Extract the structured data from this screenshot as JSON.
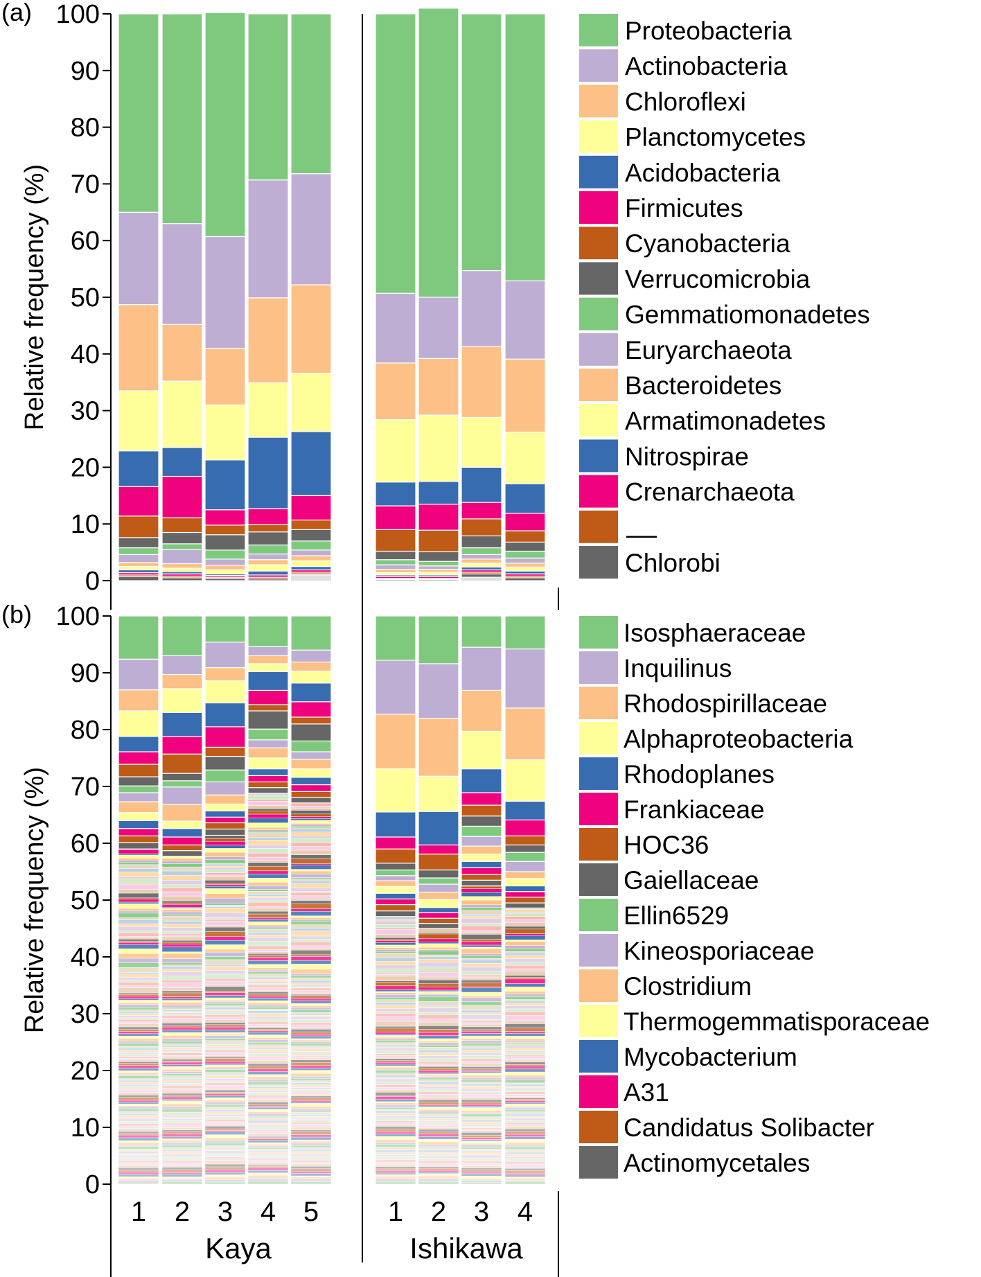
{
  "colors": {
    "green": "#7fc97f",
    "purple": "#beaed4",
    "orange": "#fdc086",
    "yellow": "#ffff99",
    "blue": "#386cb0",
    "pink": "#f0027f",
    "brown": "#bf5b17",
    "gray": "#666666"
  },
  "chart_data": [
    {
      "type": "bar",
      "stacked": true,
      "panel_label": "(a)",
      "ylabel": "Relative frequency (%)",
      "ylim": [
        0,
        100
      ],
      "yticks": [
        0,
        10,
        20,
        30,
        40,
        50,
        60,
        70,
        80,
        90,
        100
      ],
      "groups": [
        {
          "name": "Kaya",
          "categories": [
            "1",
            "2",
            "3",
            "4",
            "5"
          ]
        },
        {
          "name": "Ishikawa",
          "categories": [
            "1",
            "2",
            "3",
            "4"
          ]
        }
      ],
      "legend": [
        "Proteobacteria",
        "Actinobacteria",
        "Chloroflexi",
        "Planctomycetes",
        "Acidobacteria",
        "Firmicutes",
        "Cyanobacteria",
        "Verrucomicrobia",
        "Gemmatiomonadetes",
        "Euryarchaeota",
        "Bacteroidetes",
        "Armatimonadetes",
        "Nitrospirae",
        "Crenarchaeota",
        "—",
        "Chlorobi"
      ],
      "legend_colors": [
        "green",
        "purple",
        "orange",
        "yellow",
        "blue",
        "pink",
        "brown",
        "gray",
        "green",
        "purple",
        "orange",
        "yellow",
        "blue",
        "pink",
        "brown",
        "gray"
      ],
      "series": [
        {
          "name": "Proteobacteria",
          "color": "green",
          "values": [
            35.0,
            37.0,
            39.5,
            29.3,
            28.2,
            49.3,
            51.0,
            45.3,
            47.1
          ]
        },
        {
          "name": "Actinobacteria",
          "color": "purple",
          "values": [
            16.3,
            17.8,
            19.7,
            20.8,
            19.6,
            12.3,
            10.8,
            13.4,
            13.8
          ]
        },
        {
          "name": "Chloroflexi",
          "color": "orange",
          "values": [
            15.2,
            10.0,
            10.0,
            15.0,
            15.6,
            10.0,
            10.0,
            12.5,
            12.9
          ]
        },
        {
          "name": "Planctomycetes",
          "color": "yellow",
          "values": [
            10.6,
            11.7,
            9.7,
            9.6,
            10.3,
            11.0,
            11.7,
            8.8,
            9.1
          ]
        },
        {
          "name": "Acidobacteria",
          "color": "blue",
          "values": [
            6.3,
            5.1,
            8.8,
            12.6,
            11.3,
            4.2,
            4.0,
            6.2,
            5.2
          ]
        },
        {
          "name": "Firmicutes",
          "color": "pink",
          "values": [
            5.2,
            7.3,
            2.7,
            2.8,
            4.3,
            4.2,
            4.6,
            2.9,
            3.1
          ]
        },
        {
          "name": "Cyanobacteria",
          "color": "brown",
          "values": [
            3.8,
            2.6,
            1.7,
            1.3,
            1.7,
            3.8,
            3.8,
            3.0,
            2.0
          ]
        },
        {
          "name": "Verrucomicrobia",
          "color": "gray",
          "values": [
            1.8,
            2.0,
            2.7,
            2.3,
            2.0,
            1.5,
            1.7,
            2.1,
            1.6
          ]
        },
        {
          "name": "Gemmatiomonadetes",
          "color": "green",
          "values": [
            1.2,
            1.0,
            1.6,
            1.6,
            1.6,
            0.9,
            0.8,
            1.2,
            1.2
          ]
        },
        {
          "name": "Euryarchaeota",
          "color": "purple",
          "values": [
            1.4,
            2.5,
            1.1,
            1.0,
            1.0,
            0.8,
            0.6,
            0.8,
            0.9
          ]
        },
        {
          "name": "Bacteroidetes",
          "color": "orange",
          "values": [
            0.7,
            0.8,
            0.8,
            0.9,
            0.9,
            0.6,
            0.5,
            0.7,
            0.7
          ]
        },
        {
          "name": "Armatimonadetes",
          "color": "yellow",
          "values": [
            0.6,
            0.6,
            0.7,
            1.1,
            1.0,
            0.4,
            0.5,
            0.7,
            0.7
          ]
        },
        {
          "name": "Nitrospirae",
          "color": "blue",
          "values": [
            0.5,
            0.4,
            0.3,
            0.7,
            0.6,
            0.3,
            0.3,
            0.5,
            0.5
          ]
        },
        {
          "name": "Crenarchaeota",
          "color": "pink",
          "values": [
            0.4,
            0.4,
            0.3,
            0.4,
            0.4,
            0.3,
            0.3,
            0.4,
            0.4
          ]
        },
        {
          "name": "—",
          "color": "brown",
          "values": [
            0.3,
            0.3,
            0.2,
            0.3,
            0.3,
            0.2,
            0.2,
            0.3,
            0.3
          ]
        },
        {
          "name": "Chlorobi",
          "color": "gray",
          "values": [
            0.7,
            0.5,
            0.4,
            0.3,
            0.2,
            0.2,
            0.2,
            0.6,
            0.5
          ]
        }
      ]
    },
    {
      "type": "bar",
      "stacked": true,
      "panel_label": "(b)",
      "ylabel": "Relative frequency (%)",
      "xlabel_groups": [
        "Kaya",
        "Ishikawa"
      ],
      "ylim": [
        0,
        100
      ],
      "yticks": [
        0,
        10,
        20,
        30,
        40,
        50,
        60,
        70,
        80,
        90,
        100
      ],
      "groups": [
        {
          "name": "Kaya",
          "categories": [
            "1",
            "2",
            "3",
            "4",
            "5"
          ]
        },
        {
          "name": "Ishikawa",
          "categories": [
            "1",
            "2",
            "3",
            "4"
          ]
        }
      ],
      "legend": [
        "Isosphaeraceae",
        "Inquilinus",
        "Rhodospirillaceae",
        "Alphaproteobacteria",
        "Rhodoplanes",
        "Frankiaceae",
        "HOC36",
        "Gaiellaceae",
        "Ellin6529",
        "Kineosporiaceae",
        "Clostridium",
        "Thermogemmatisporaceae",
        "Mycobacterium",
        "A31",
        "Candidatus Solibacter",
        "Actinomycetales"
      ],
      "legend_colors": [
        "green",
        "purple",
        "orange",
        "yellow",
        "blue",
        "pink",
        "brown",
        "gray",
        "green",
        "purple",
        "orange",
        "yellow",
        "blue",
        "pink",
        "brown",
        "gray"
      ],
      "series": [
        {
          "name": "Isosphaeraceae",
          "color": "green",
          "values": [
            7.6,
            7.0,
            4.6,
            5.4,
            6.0,
            7.8,
            8.4,
            5.5,
            5.8
          ]
        },
        {
          "name": "Inquilinus",
          "color": "purple",
          "values": [
            5.4,
            3.3,
            4.5,
            1.6,
            2.1,
            9.5,
            9.6,
            7.6,
            10.4
          ]
        },
        {
          "name": "Rhodospirillaceae",
          "color": "orange",
          "values": [
            3.7,
            2.5,
            2.3,
            1.4,
            1.6,
            9.6,
            10.2,
            7.2,
            9.1
          ]
        },
        {
          "name": "Alphaproteobacteria",
          "color": "yellow",
          "values": [
            4.5,
            4.2,
            3.9,
            1.4,
            2.1,
            7.6,
            6.2,
            6.6,
            7.3
          ]
        },
        {
          "name": "Rhodoplanes",
          "color": "blue",
          "values": [
            2.7,
            4.2,
            4.2,
            3.3,
            3.3,
            4.4,
            5.9,
            4.2,
            3.3
          ]
        },
        {
          "name": "Frankiaceae",
          "color": "pink",
          "values": [
            2.2,
            3.1,
            3.6,
            2.5,
            2.7,
            2.1,
            1.6,
            2.2,
            2.8
          ]
        },
        {
          "name": "HOC36",
          "color": "brown",
          "values": [
            2.2,
            3.4,
            1.6,
            1.1,
            1.2,
            2.5,
            2.8,
            1.9,
            1.6
          ]
        },
        {
          "name": "Gaiellaceae",
          "color": "gray",
          "values": [
            1.6,
            1.3,
            2.4,
            3.2,
            3.0,
            1.2,
            1.4,
            1.8,
            1.3
          ]
        },
        {
          "name": "Ellin6529",
          "color": "green",
          "values": [
            1.2,
            1.1,
            2.1,
            1.9,
            1.9,
            1.0,
            1.1,
            1.8,
            1.6
          ]
        },
        {
          "name": "Kineosporiaceae",
          "color": "purple",
          "values": [
            1.6,
            3.1,
            2.3,
            1.4,
            1.3,
            0.9,
            1.4,
            1.7,
            1.8
          ]
        },
        {
          "name": "Clostridium",
          "color": "orange",
          "values": [
            1.9,
            2.9,
            1.6,
            1.8,
            1.7,
            1.0,
            1.3,
            1.4,
            1.2
          ]
        },
        {
          "name": "Thermogemmatisporaceae",
          "color": "yellow",
          "values": [
            1.4,
            1.3,
            1.2,
            1.9,
            1.5,
            1.2,
            1.4,
            1.3,
            1.3
          ]
        },
        {
          "name": "Mycobacterium",
          "color": "blue",
          "values": [
            1.4,
            1.5,
            1.1,
            1.2,
            1.3,
            1.0,
            0.9,
            1.1,
            1.0
          ]
        },
        {
          "name": "A31",
          "color": "pink",
          "values": [
            1.3,
            1.4,
            1.0,
            1.1,
            1.2,
            1.0,
            1.0,
            1.2,
            1.0
          ]
        },
        {
          "name": "Candidatus Solibacter",
          "color": "brown",
          "values": [
            1.2,
            1.0,
            1.1,
            1.0,
            1.0,
            1.1,
            0.9,
            1.0,
            1.0
          ]
        },
        {
          "name": "Actinomycetales",
          "color": "gray",
          "values": [
            1.1,
            1.0,
            1.1,
            1.0,
            1.0,
            1.0,
            0.9,
            1.0,
            0.9
          ]
        }
      ]
    }
  ]
}
